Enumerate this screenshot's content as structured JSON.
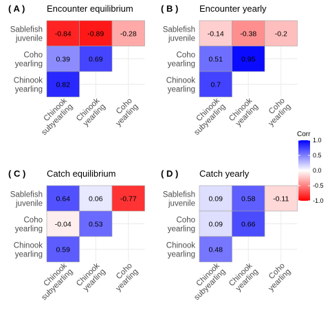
{
  "legend": {
    "title": "Corr",
    "ticks": [
      "1.0",
      "0.5",
      "0.0",
      "-0.5",
      "-1.0"
    ],
    "tick_values": [
      1.0,
      0.5,
      0.0,
      -0.5,
      -1.0
    ],
    "colors": {
      "negative": "#ff0000",
      "neutral": "#ffffff",
      "positive": "#0000ff"
    }
  },
  "chart_data": [
    {
      "type": "heatmap",
      "tag": "( A )",
      "title": "Encounter equilibrium",
      "rows": [
        "Sablefish\njuvenile",
        "Coho\nyearling",
        "Chinook\nyearling"
      ],
      "columns": [
        "Chinook\nsubyearling",
        "Chinook\nyearling",
        "Coho\nyearling"
      ],
      "values": [
        [
          -0.84,
          -0.89,
          -0.28
        ],
        [
          0.39,
          0.69,
          null
        ],
        [
          0.82,
          null,
          null
        ]
      ],
      "labels": [
        [
          "-0.84",
          "-0.89",
          "-0.28"
        ],
        [
          "0.39",
          "0.69",
          null
        ],
        [
          "0.82",
          null,
          null
        ]
      ]
    },
    {
      "type": "heatmap",
      "tag": "( B )",
      "title": "Encounter yearly",
      "rows": [
        "Sablefish\njuvenile",
        "Coho\nyearling",
        "Chinook\nyearling"
      ],
      "columns": [
        "Chinook\nsubyearling",
        "Chinook\nyearling",
        "Coho\nyearling"
      ],
      "values": [
        [
          -0.14,
          -0.38,
          -0.2
        ],
        [
          0.51,
          0.95,
          null
        ],
        [
          0.7,
          null,
          null
        ]
      ],
      "labels": [
        [
          "-0.14",
          "-0.38",
          "-0.2"
        ],
        [
          "0.51",
          "0.95",
          null
        ],
        [
          "0.7",
          null,
          null
        ]
      ]
    },
    {
      "type": "heatmap",
      "tag": "( C )",
      "title": "Catch equilibrium",
      "rows": [
        "Sablefish\njuvenile",
        "Coho\nyearling",
        "Chinook\nyearling"
      ],
      "columns": [
        "Chinook\nsubyearling",
        "Chinook\nyearling",
        "Coho\nyearling"
      ],
      "values": [
        [
          0.64,
          0.06,
          -0.77
        ],
        [
          -0.04,
          0.53,
          null
        ],
        [
          0.59,
          null,
          null
        ]
      ],
      "labels": [
        [
          "0.64",
          "0.06",
          "-0.77"
        ],
        [
          "-0.04",
          "0.53",
          null
        ],
        [
          "0.59",
          null,
          null
        ]
      ]
    },
    {
      "type": "heatmap",
      "tag": "( D )",
      "title": "Catch yearly",
      "rows": [
        "Sablefish\njuvenile",
        "Coho\nyearling",
        "Chinook\nyearling"
      ],
      "columns": [
        "Chinook\nsubyearling",
        "Chinook\nyearling",
        "Coho\nyearling"
      ],
      "values": [
        [
          0.09,
          0.58,
          -0.11
        ],
        [
          0.09,
          0.66,
          null
        ],
        [
          0.48,
          null,
          null
        ]
      ],
      "labels": [
        [
          "0.09",
          "0.58",
          "-0.11"
        ],
        [
          "0.09",
          "0.66",
          null
        ],
        [
          "0.48",
          null,
          null
        ]
      ]
    }
  ]
}
